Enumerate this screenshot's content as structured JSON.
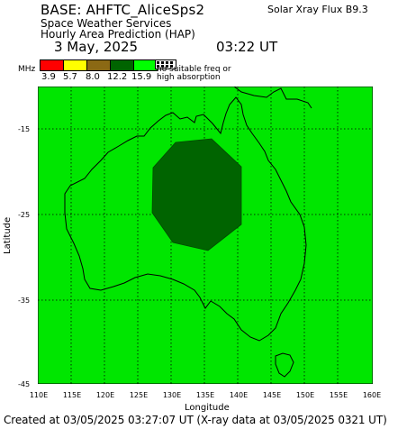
{
  "header": {
    "base": "BASE: AHFTC_AliceSps2",
    "line1": "Space Weather Services",
    "line2": "Hourly Area Prediction (HAP)",
    "flux": "Solar Xray Flux B9.3",
    "date": "3 May, 2025",
    "time": "03:22 UT"
  },
  "legend": {
    "unit": "MHz",
    "colors": [
      "#ff0000",
      "#ffff00",
      "#8b6914",
      "#006400",
      "#00ff00"
    ],
    "labels": [
      "3.9",
      "5.7",
      "8.0",
      "12.2",
      "15.9"
    ],
    "no_suitable_line1": "no suitable freq or",
    "no_suitable_line2": "high absorption"
  },
  "map": {
    "x_label": "Longitude",
    "y_label": "Latitude",
    "x_ticks": [
      "110E",
      "115E",
      "120E",
      "125E",
      "130E",
      "135E",
      "140E",
      "145E",
      "150E",
      "155E",
      "160E"
    ],
    "y_ticks": [
      "-15",
      "-25",
      "-35",
      "-45"
    ],
    "background_color": "#00e600",
    "region_color": "#006400"
  },
  "footer": "Created at 03/05/2025 03:27:07 UT (X-ray data at 03/05/2025 0321 UT)"
}
